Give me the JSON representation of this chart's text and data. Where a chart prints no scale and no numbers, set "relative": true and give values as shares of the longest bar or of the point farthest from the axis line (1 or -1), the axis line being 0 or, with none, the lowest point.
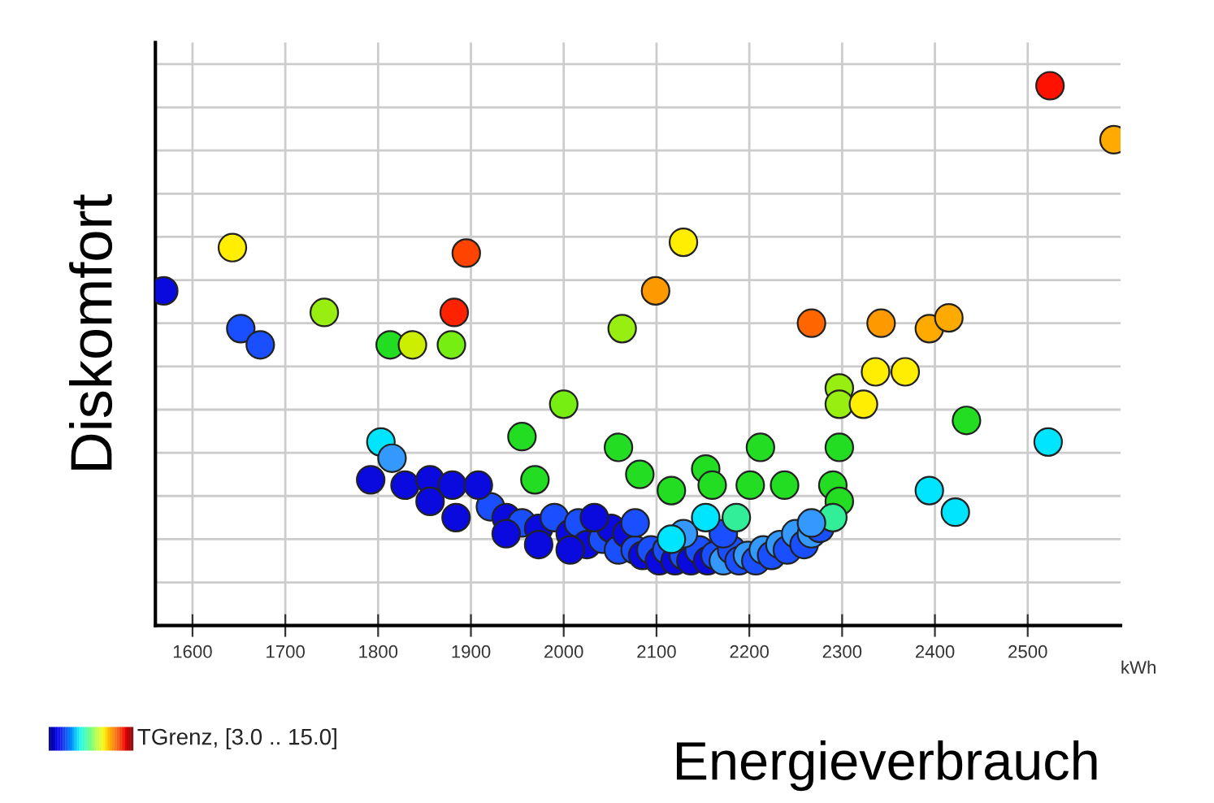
{
  "chart_data": {
    "type": "scatter",
    "xlabel": "Energieverbrauch",
    "ylabel": "Diskomfort",
    "relative": true,
    "xlim": [
      1560,
      2600
    ],
    "xticks": [
      1600,
      1700,
      1800,
      1900,
      2000,
      2100,
      2200,
      2300,
      2400,
      2500
    ],
    "grid": true,
    "tick_labels": "x",
    "marker": "circle",
    "annotations": [
      {
        "text": "kWh"
      },
      {
        "text": "TGrenz, [3.0 .. 15.0]"
      }
    ],
    "x": [
      1921,
      1938,
      1955,
      1973,
      1990,
      2007,
      2016,
      2025,
      2042,
      2051,
      2059,
      2068,
      2077,
      2085,
      2094,
      2103,
      2111,
      2120,
      2129,
      2137,
      2146,
      2155,
      2163,
      2172,
      2181,
      2189,
      2198,
      2207,
      2215,
      2224,
      2233,
      2241,
      2250,
      2259,
      2267,
      2276,
      1938,
      1973,
      2007,
      2033,
      2077,
      2129,
      2172,
      1569,
      1643,
      1652,
      1673,
      1742,
      1813,
      1837,
      1879,
      1882,
      1895,
      2063,
      2099,
      2129,
      2267,
      2342,
      2394,
      2415,
      2524,
      2593,
      2336,
      2368,
      2297,
      2297,
      2323,
      2434,
      2522,
      2297,
      2212,
      2394,
      2422,
      2153,
      2160,
      2201,
      2238,
      2290,
      2297,
      2290,
      2116,
      2186,
      2153,
      2116,
      1803,
      1815,
      1792,
      1829,
      1856,
      1880,
      1908,
      1856,
      1884,
      1955,
      2000,
      1969,
      2059,
      2082,
      2267
    ],
    "values": [
      0.22,
      0.2,
      0.19,
      0.18,
      0.2,
      0.17,
      0.19,
      0.15,
      0.16,
      0.18,
      0.14,
      0.17,
      0.14,
      0.13,
      0.14,
      0.12,
      0.14,
      0.12,
      0.13,
      0.12,
      0.14,
      0.12,
      0.13,
      0.12,
      0.14,
      0.12,
      0.13,
      0.12,
      0.14,
      0.13,
      0.15,
      0.14,
      0.17,
      0.15,
      0.17,
      0.18,
      0.17,
      0.15,
      0.14,
      0.2,
      0.19,
      0.17,
      0.17,
      0.62,
      0.7,
      0.55,
      0.52,
      0.58,
      0.52,
      0.52,
      0.52,
      0.58,
      0.69,
      0.55,
      0.62,
      0.71,
      0.56,
      0.56,
      0.55,
      0.57,
      1.0,
      0.9,
      0.47,
      0.47,
      0.44,
      0.41,
      0.41,
      0.38,
      0.34,
      0.33,
      0.33,
      0.25,
      0.21,
      0.29,
      0.26,
      0.26,
      0.26,
      0.26,
      0.23,
      0.2,
      0.25,
      0.2,
      0.2,
      0.16,
      0.34,
      0.31,
      0.27,
      0.26,
      0.27,
      0.26,
      0.26,
      0.23,
      0.2,
      0.35,
      0.41,
      0.27,
      0.33,
      0.28,
      0.19
    ],
    "colors": [
      "#1a4fff",
      "#0a0adf",
      "#1a4fff",
      "#0a0adf",
      "#1a4fff",
      "#0a0adf",
      "#1a4fff",
      "#0a0adf",
      "#1a4fff",
      "#0a0adf",
      "#1a4fff",
      "#0a0adf",
      "#1a4fff",
      "#0a0adf",
      "#1a4fff",
      "#0a0adf",
      "#1a4fff",
      "#0a0adf",
      "#1a4fff",
      "#0a0adf",
      "#1a4fff",
      "#0a0adf",
      "#1a4fff",
      "#3399ff",
      "#1a4fff",
      "#1a4fff",
      "#3399ff",
      "#1a4fff",
      "#3399ff",
      "#1a4fff",
      "#3399ff",
      "#1a4fff",
      "#3399ff",
      "#1a4fff",
      "#3399ff",
      "#1a4fff",
      "#0a0adf",
      "#0a0adf",
      "#0a0adf",
      "#0a0adf",
      "#1a4fff",
      "#3399ff",
      "#1a4fff",
      "#0a0adf",
      "#ffee00",
      "#1a4fff",
      "#1a4fff",
      "#99ee11",
      "#22dd22",
      "#ccee00",
      "#77ee11",
      "#ff2200",
      "#ff4400",
      "#99ee11",
      "#ff9900",
      "#ffee00",
      "#ff6600",
      "#ff9900",
      "#ffaa00",
      "#ffaa00",
      "#ff1100",
      "#ffaa00",
      "#ffee00",
      "#ffee00",
      "#99ee11",
      "#99ee11",
      "#ffee00",
      "#22dd22",
      "#00e5ff",
      "#22dd22",
      "#22dd22",
      "#00e5ff",
      "#00e5ff",
      "#22dd22",
      "#22dd22",
      "#22dd22",
      "#22dd22",
      "#22dd22",
      "#22dd22",
      "#33ee99",
      "#22dd22",
      "#33ee99",
      "#00e5ff",
      "#00e5ff",
      "#00e5ff",
      "#3399ff",
      "#0a0adf",
      "#0a0adf",
      "#0a0adf",
      "#0a0adf",
      "#0a0adf",
      "#0a0adf",
      "#0a0adf",
      "#22dd22",
      "#77ee11",
      "#22dd22",
      "#22dd22",
      "#22dd22",
      "#3399ff"
    ]
  }
}
